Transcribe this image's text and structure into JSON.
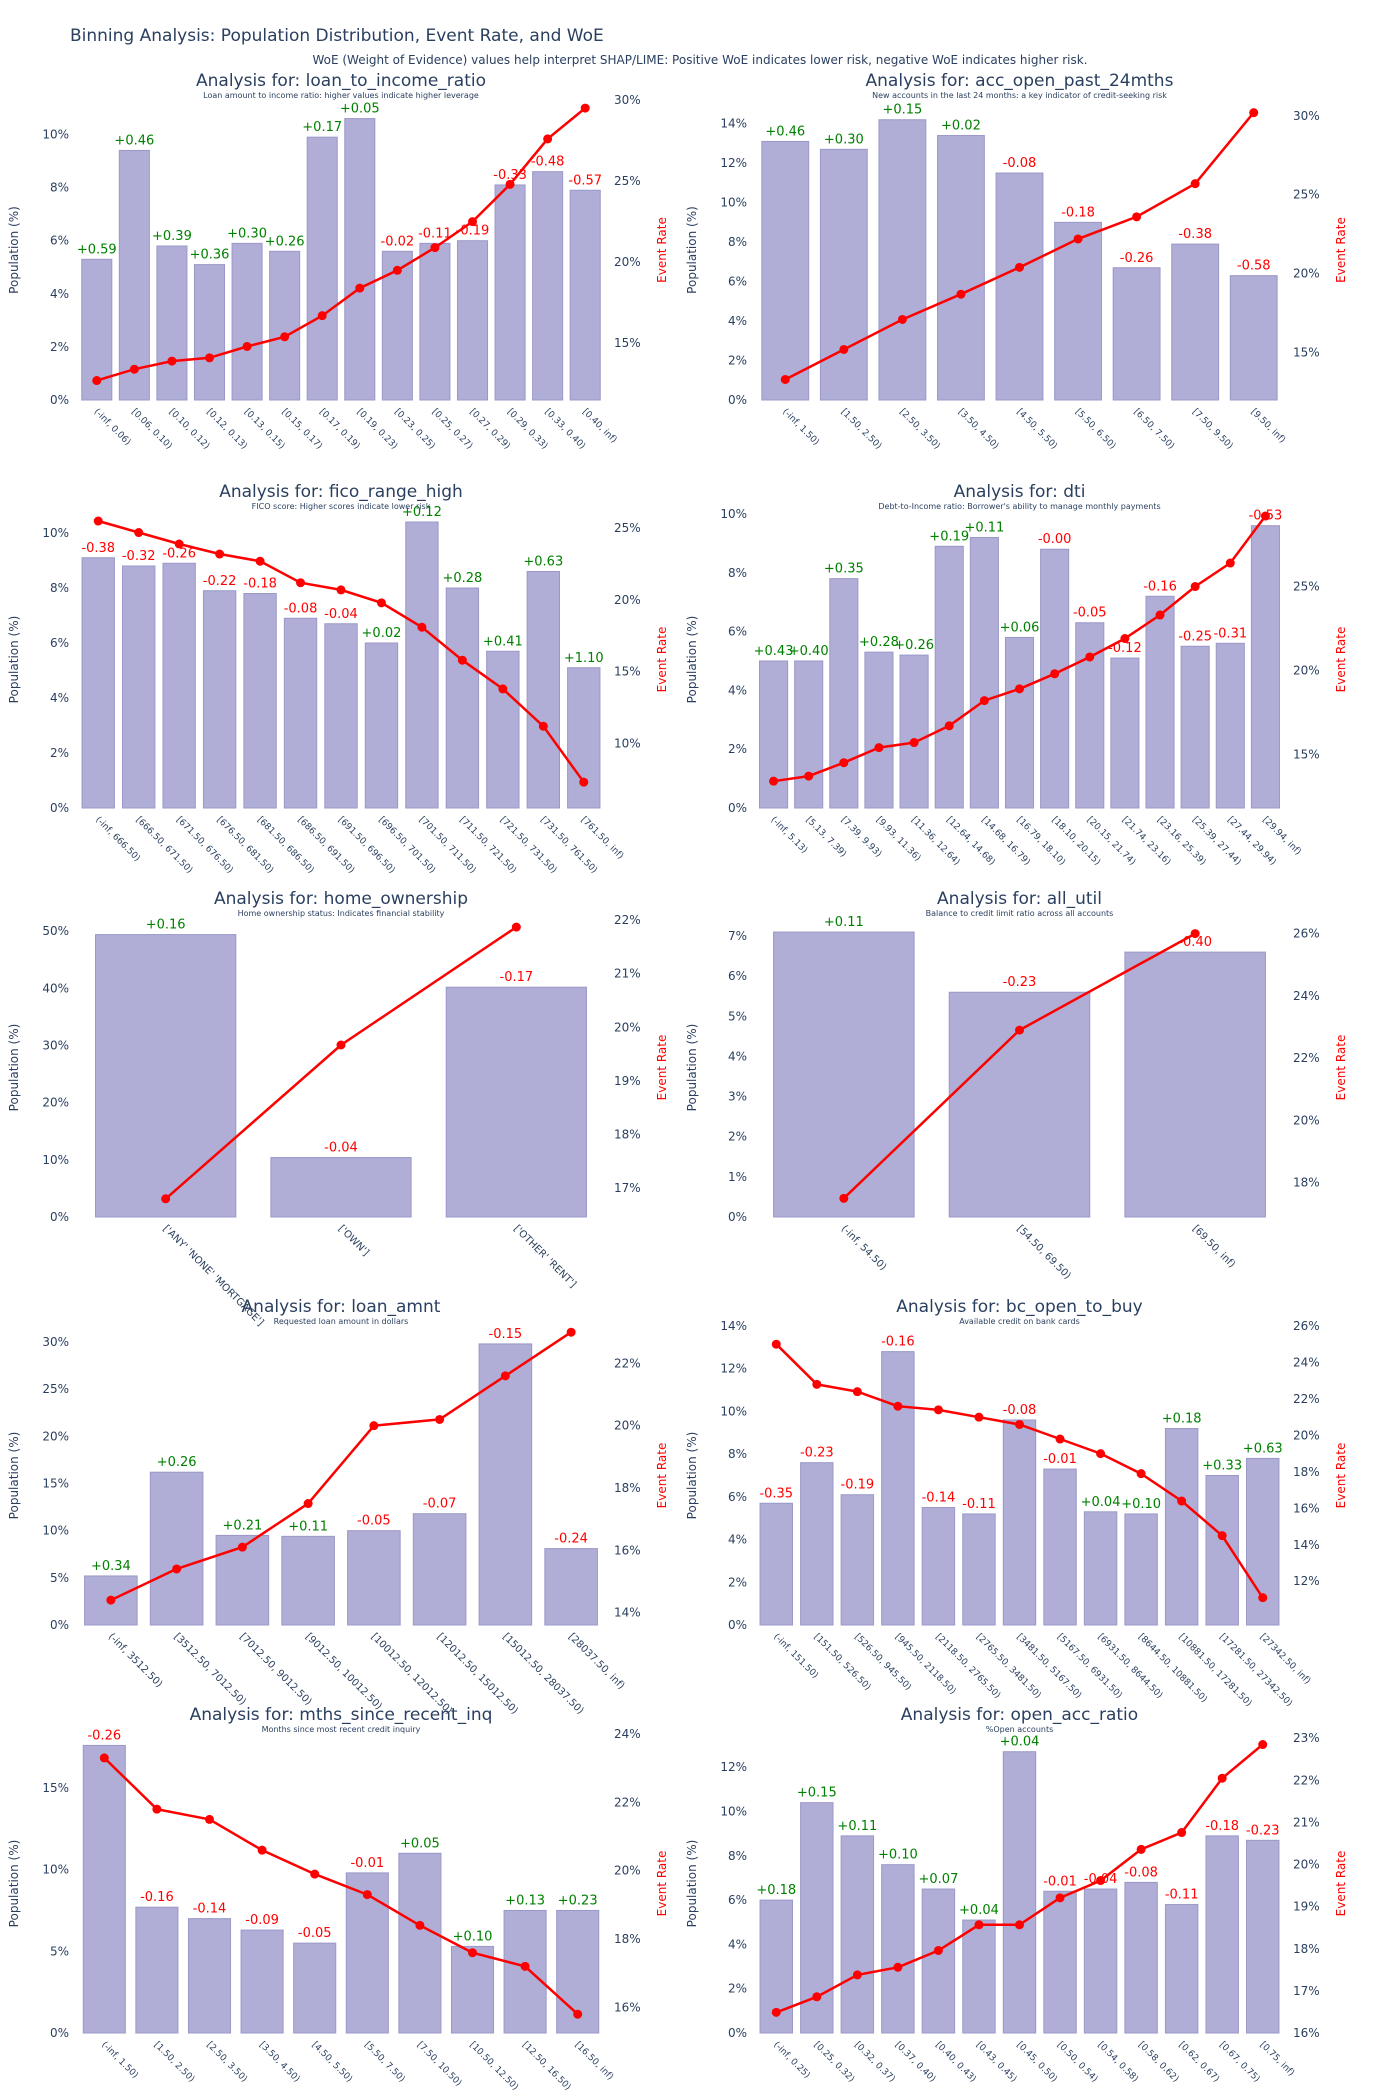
{
  "title": "Binning Analysis: Population Distribution, Event Rate, and WoE",
  "subtitle": "WoE (Weight of Evidence) values help interpret SHAP/LIME: Positive WoE indicates lower risk, negative WoE indicates higher risk.",
  "colors": {
    "bar": "#b0aed6",
    "bar_edge": "#9a98c8",
    "line": "#ff0000",
    "woe_pos": "#008000",
    "woe_neg": "#ff0000"
  },
  "chart_data": [
    {
      "type": "bar",
      "title": "Analysis for: loan_to_income_ratio",
      "description": "Loan amount to income ratio: higher values indicate higher leverage",
      "ylabel": "Population (%)",
      "y2label": "Event Rate",
      "ylim": [
        0,
        11.3
      ],
      "yticks": [
        0,
        2,
        4,
        6,
        8,
        10
      ],
      "y2lim": [
        0.115,
        0.3
      ],
      "y2ticks": [
        0.15,
        0.2,
        0.25,
        0.3
      ],
      "categories": [
        "(-inf, 0.06)",
        "[0.06, 0.10)",
        "[0.10, 0.12)",
        "[0.12, 0.13)",
        "[0.13, 0.15)",
        "[0.15, 0.17)",
        "[0.17, 0.19)",
        "[0.19, 0.23)",
        "[0.23, 0.25)",
        "[0.25, 0.27)",
        "[0.27, 0.29)",
        "[0.29, 0.33)",
        "[0.33, 0.40)",
        "[0.40, inf)"
      ],
      "population": [
        5.3,
        9.4,
        5.8,
        5.1,
        5.9,
        5.6,
        9.9,
        10.6,
        5.6,
        5.9,
        6.0,
        8.1,
        8.6,
        7.9
      ],
      "event_rate": [
        0.127,
        0.134,
        0.139,
        0.141,
        0.148,
        0.154,
        0.167,
        0.184,
        0.195,
        0.209,
        0.225,
        0.248,
        0.276,
        0.295
      ],
      "woe": [
        "+0.59",
        "+0.46",
        "+0.39",
        "+0.36",
        "+0.30",
        "+0.26",
        "+0.17",
        "+0.05",
        "-0.02",
        "-0.11",
        "-0.19",
        "-0.33",
        "-0.48",
        "-0.57"
      ]
    },
    {
      "type": "bar",
      "title": "Analysis for: acc_open_past_24mths",
      "description": "New accounts in the last 24 months: a key indicator of credit-seeking risk",
      "ylabel": "Population (%)",
      "y2label": "Event Rate",
      "ylim": [
        0,
        15.2
      ],
      "yticks": [
        0,
        2,
        4,
        6,
        8,
        10,
        12,
        14
      ],
      "y2lim": [
        0.12,
        0.31
      ],
      "y2ticks": [
        0.15,
        0.2,
        0.25,
        0.3
      ],
      "categories": [
        "(-inf, 1.50)",
        "[1.50, 2.50)",
        "[2.50, 3.50)",
        "[3.50, 4.50)",
        "[4.50, 5.50)",
        "[5.50, 6.50)",
        "[6.50, 7.50)",
        "[7.50, 9.50)",
        "[9.50, inf)"
      ],
      "population": [
        13.1,
        12.7,
        14.2,
        13.4,
        11.5,
        9.0,
        6.7,
        7.9,
        6.3
      ],
      "event_rate": [
        0.133,
        0.152,
        0.171,
        0.187,
        0.204,
        0.222,
        0.236,
        0.257,
        0.302
      ],
      "woe": [
        "+0.46",
        "+0.30",
        "+0.15",
        "+0.02",
        "-0.08",
        "-0.18",
        "-0.26",
        "-0.38",
        "-0.58"
      ]
    },
    {
      "type": "bar",
      "title": "Analysis for: fico_range_high",
      "description": "FICO score: Higher scores indicate lower risk",
      "ylabel": "Population (%)",
      "y2label": "Event Rate",
      "ylim": [
        0,
        10.8
      ],
      "yticks": [
        0,
        2,
        4,
        6,
        8,
        10
      ],
      "y2lim": [
        0.055,
        0.262
      ],
      "y2ticks": [
        0.1,
        0.15,
        0.2,
        0.25
      ],
      "categories": [
        "(-inf, 666.50)",
        "[666.50, 671.50)",
        "[671.50, 676.50)",
        "[676.50, 681.50)",
        "[681.50, 686.50)",
        "[686.50, 691.50)",
        "[691.50, 696.50)",
        "[696.50, 701.50)",
        "[701.50, 711.50)",
        "[711.50, 721.50)",
        "[721.50, 731.50)",
        "[731.50, 761.50)",
        "[761.50, inf)"
      ],
      "population": [
        9.1,
        8.8,
        8.9,
        7.9,
        7.8,
        6.9,
        6.7,
        6.0,
        10.4,
        8.0,
        5.7,
        8.6,
        5.1
      ],
      "event_rate": [
        0.255,
        0.247,
        0.239,
        0.232,
        0.227,
        0.212,
        0.207,
        0.198,
        0.181,
        0.158,
        0.138,
        0.112,
        0.073
      ],
      "woe": [
        "-0.38",
        "-0.32",
        "-0.26",
        "-0.22",
        "-0.18",
        "-0.08",
        "-0.04",
        "+0.02",
        "+0.12",
        "+0.28",
        "+0.41",
        "+0.63",
        "+1.10"
      ]
    },
    {
      "type": "bar",
      "title": "Analysis for: dti",
      "description": "Debt-to-Income ratio: Borrower's ability to manage monthly payments",
      "ylabel": "Population (%)",
      "y2label": "Event Rate",
      "ylim": [
        0,
        10.1
      ],
      "yticks": [
        0,
        2,
        4,
        6,
        8,
        10
      ],
      "y2lim": [
        0.118,
        0.295
      ],
      "y2ticks": [
        0.15,
        0.2,
        0.25
      ],
      "categories": [
        "(-inf, 5.13)",
        "[5.13, 7.39)",
        "[7.39, 9.93)",
        "[9.93, 11.36)",
        "[11.36, 12.64)",
        "[12.64, 14.68)",
        "[14.68, 16.79)",
        "[16.79, 18.10)",
        "[18.10, 20.15)",
        "[20.15, 21.74)",
        "[21.74, 23.16)",
        "[23.16, 25.39)",
        "[25.39, 27.44)",
        "[27.44, 29.94)",
        "[29.94, inf)"
      ],
      "population": [
        5.0,
        5.0,
        7.8,
        5.3,
        5.2,
        8.9,
        9.2,
        5.8,
        8.8,
        6.3,
        5.1,
        7.2,
        5.5,
        5.6,
        9.6
      ],
      "event_rate": [
        0.134,
        0.137,
        0.145,
        0.154,
        0.157,
        0.167,
        0.182,
        0.189,
        0.198,
        0.208,
        0.219,
        0.233,
        0.25,
        0.264,
        0.292
      ],
      "woe": [
        "+0.43",
        "+0.40",
        "+0.35",
        "+0.28",
        "+0.26",
        "+0.19",
        "+0.11",
        "+0.06",
        "-0.00",
        "-0.05",
        "-0.12",
        "-0.16",
        "-0.25",
        "-0.31",
        "-0.53"
      ]
    },
    {
      "type": "bar",
      "title": "Analysis for: home_ownership",
      "description": "Home ownership status: Indicates financial stability",
      "ylabel": "Population (%)",
      "y2label": "Event Rate",
      "ylim": [
        0,
        52.3
      ],
      "yticks": [
        0,
        10,
        20,
        30,
        40,
        50
      ],
      "y2lim": [
        0.1646,
        0.2204
      ],
      "y2ticks": [
        0.17,
        0.18,
        0.19,
        0.2,
        0.21,
        0.22
      ],
      "categories": [
        "['ANY' 'NONE' 'MORTGAGE']",
        "['OWN']",
        "['OTHER' 'RENT']"
      ],
      "population": [
        49.4,
        10.4,
        40.2
      ],
      "event_rate": [
        0.168,
        0.1967,
        0.2187
      ],
      "woe": [
        "+0.16",
        "-0.04",
        "-0.17"
      ]
    },
    {
      "type": "bar",
      "title": "Analysis for: all_util",
      "description": "Balance to credit limit ratio across all accounts",
      "ylabel": "Population (%)",
      "y2label": "Event Rate",
      "ylim": [
        0,
        7.45
      ],
      "yticks": [
        0,
        1,
        2,
        3,
        4,
        5,
        6,
        7
      ],
      "y2lim": [
        0.169,
        0.265
      ],
      "y2ticks": [
        0.18,
        0.2,
        0.22,
        0.24,
        0.26
      ],
      "categories": [
        "(-inf, 54.50)",
        "[54.50, 69.50)",
        "[69.50, inf)"
      ],
      "population": [
        7.1,
        5.6,
        6.6
      ],
      "event_rate": [
        0.175,
        0.229,
        0.26
      ],
      "woe": [
        "+0.11",
        "-0.23",
        "-0.40"
      ]
    },
    {
      "type": "bar",
      "title": "Analysis for: loan_amnt",
      "description": "Requested loan amount in dollars",
      "ylabel": "Population (%)",
      "y2label": "Event Rate",
      "ylim": [
        0,
        31.7
      ],
      "yticks": [
        0,
        5,
        10,
        15,
        20,
        25,
        30
      ],
      "y2lim": [
        0.136,
        0.232
      ],
      "y2ticks": [
        0.14,
        0.16,
        0.18,
        0.2,
        0.22
      ],
      "categories": [
        "(-inf, 3512.50)",
        "[3512.50, 7012.50)",
        "[7012.50, 9012.50)",
        "[9012.50, 10012.50)",
        "[10012.50, 12012.50)",
        "[12012.50, 15012.50)",
        "[15012.50, 28037.50)",
        "[28037.50, inf)"
      ],
      "population": [
        5.2,
        16.2,
        9.5,
        9.4,
        10.0,
        11.8,
        29.8,
        8.1
      ],
      "event_rate": [
        0.144,
        0.154,
        0.161,
        0.175,
        0.2,
        0.202,
        0.216,
        0.23
      ],
      "woe": [
        "+0.34",
        "+0.26",
        "+0.21",
        "+0.11",
        "-0.05",
        "-0.07",
        "-0.15",
        "-0.24"
      ]
    },
    {
      "type": "bar",
      "title": "Analysis for: bc_open_to_buy",
      "description": "Available credit on bank cards",
      "ylabel": "Population (%)",
      "y2label": "Event Rate",
      "ylim": [
        0,
        14.0
      ],
      "yticks": [
        0,
        2,
        4,
        6,
        8,
        10,
        12,
        14
      ],
      "y2lim": [
        0.096,
        0.26
      ],
      "y2ticks": [
        0.12,
        0.14,
        0.16,
        0.18,
        0.2,
        0.22,
        0.24,
        0.26
      ],
      "categories": [
        "(-inf, 151.50)",
        "[151.50, 526.50)",
        "[526.50, 945.50)",
        "[945.50, 2118.50)",
        "[2118.50, 2765.50)",
        "[2765.50, 3481.50)",
        "[3481.50, 5167.50)",
        "[5167.50, 6931.50)",
        "[6931.50, 8644.50)",
        "[8644.50, 10881.50)",
        "[10881.50, 17281.50)",
        "[17281.50, 27342.50)",
        "[27342.50, inf)"
      ],
      "population": [
        5.7,
        7.6,
        6.1,
        12.8,
        5.5,
        5.2,
        9.6,
        7.3,
        5.3,
        5.2,
        9.2,
        7.0,
        7.8
      ],
      "event_rate": [
        0.25,
        0.228,
        0.224,
        0.216,
        0.214,
        0.21,
        0.206,
        0.198,
        0.19,
        0.179,
        0.164,
        0.145,
        0.111
      ],
      "woe": [
        "-0.35",
        "-0.23",
        "-0.19",
        "-0.16",
        "-0.14",
        "-0.11",
        "-0.08",
        "-0.01",
        "+0.04",
        "+0.10",
        "+0.18",
        "+0.33",
        "+0.63"
      ]
    },
    {
      "type": "bar",
      "title": "Analysis for: mths_since_recent_inq",
      "description": "Months since most recent credit inquiry",
      "ylabel": "Population (%)",
      "y2label": "Event Rate",
      "ylim": [
        0,
        18.3
      ],
      "yticks": [
        0,
        5,
        10,
        15
      ],
      "y2lim": [
        0.1525,
        0.24
      ],
      "y2ticks": [
        0.16,
        0.18,
        0.2,
        0.22,
        0.24
      ],
      "categories": [
        "(-inf, 1.50)",
        "[1.50, 2.50)",
        "[2.50, 3.50)",
        "[3.50, 4.50)",
        "[4.50, 5.50)",
        "[5.50, 7.50)",
        "[7.50, 10.50)",
        "[10.50, 12.50)",
        "[12.50, 16.50)",
        "[16.50, inf)"
      ],
      "population": [
        17.6,
        7.7,
        7.0,
        6.3,
        5.5,
        9.8,
        11.0,
        5.3,
        7.5,
        7.5
      ],
      "event_rate": [
        0.233,
        0.218,
        0.215,
        0.206,
        0.199,
        0.193,
        0.184,
        0.176,
        0.172,
        0.158
      ],
      "woe": [
        "-0.26",
        "-0.16",
        "-0.14",
        "-0.09",
        "-0.05",
        "-0.01",
        "+0.05",
        "+0.10",
        "+0.13",
        "+0.23"
      ]
    },
    {
      "type": "bar",
      "title": "Analysis for: open_acc_ratio",
      "description": "%Open accounts",
      "ylabel": "Population (%)",
      "y2label": "Event Rate",
      "ylim": [
        0,
        13.5
      ],
      "yticks": [
        0,
        2,
        4,
        6,
        8,
        10,
        12
      ],
      "y2lim": [
        0.16,
        0.231
      ],
      "y2ticks": [
        0.16,
        0.17,
        0.18,
        0.19,
        0.2,
        0.21,
        0.22,
        0.23
      ],
      "categories": [
        "(-inf, 0.25)",
        "[0.25, 0.32)",
        "[0.32, 0.37)",
        "[0.37, 0.40)",
        "[0.40, 0.43)",
        "[0.43, 0.45)",
        "[0.45, 0.50)",
        "[0.50, 0.54)",
        "[0.54, 0.58)",
        "[0.58, 0.62)",
        "[0.62, 0.67)",
        "[0.67, 0.75)",
        "[0.75, inf)"
      ],
      "population": [
        6.0,
        10.4,
        8.9,
        7.6,
        6.5,
        5.1,
        12.7,
        6.4,
        6.5,
        6.8,
        5.8,
        8.9,
        8.7
      ],
      "event_rate": [
        0.1649,
        0.1686,
        0.1738,
        0.1756,
        0.1796,
        0.1857,
        0.1857,
        0.1921,
        0.1962,
        0.2036,
        0.2076,
        0.2205,
        0.2285
      ],
      "woe": [
        "+0.18",
        "+0.15",
        "+0.11",
        "+0.10",
        "+0.07",
        "+0.04",
        "+0.04",
        "-0.01",
        "-0.04",
        "-0.08",
        "-0.11",
        "-0.18",
        "-0.23"
      ]
    }
  ]
}
